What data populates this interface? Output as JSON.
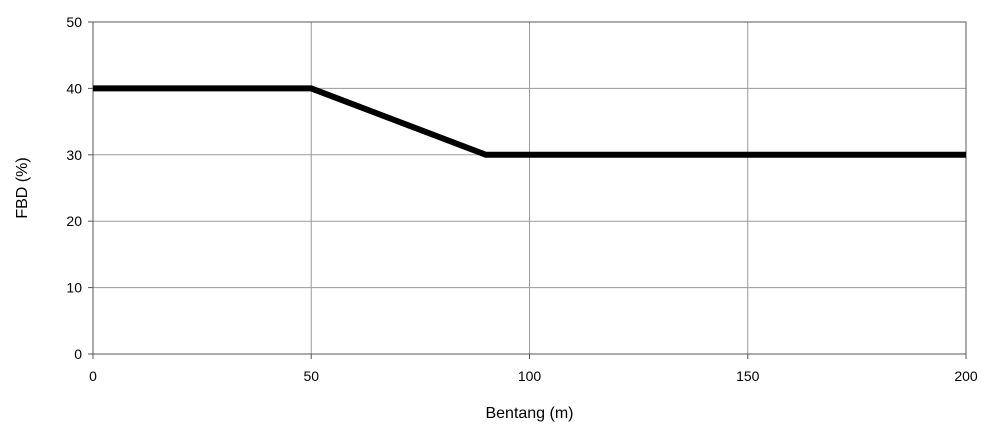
{
  "chart_data": {
    "type": "line",
    "title": "",
    "xlabel": "Bentang (m)",
    "ylabel": "FBD (%)",
    "xlim": [
      0,
      200
    ],
    "ylim": [
      0,
      50
    ],
    "x_ticks": [
      0,
      50,
      100,
      150,
      200
    ],
    "y_ticks": [
      0,
      10,
      20,
      30,
      40,
      50
    ],
    "grid": true,
    "legend": "none",
    "series": [
      {
        "color": "#000000",
        "points": [
          [
            0,
            40
          ],
          [
            50,
            40
          ],
          [
            90,
            30
          ],
          [
            200,
            30
          ]
        ]
      }
    ]
  }
}
